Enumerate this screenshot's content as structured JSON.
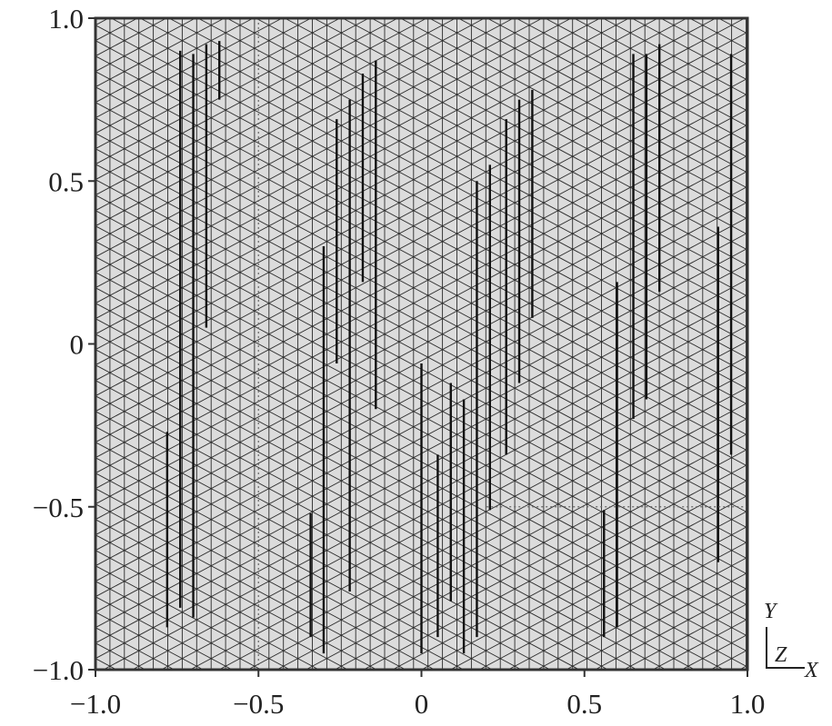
{
  "chart_data": {
    "type": "mesh",
    "xlim": [
      -1.0,
      1.0
    ],
    "ylim": [
      -1.0,
      1.0
    ],
    "x_ticks": [
      "−1.0",
      "−0.5",
      "0",
      "0.5",
      "1.0"
    ],
    "x_tick_values": [
      -1.0,
      -0.5,
      0,
      0.5,
      1.0
    ],
    "y_ticks": [
      "1.0",
      "0.5",
      "0",
      "−0.5",
      "−1.0"
    ],
    "y_tick_values": [
      1.0,
      0.5,
      0,
      -0.5,
      -1.0
    ],
    "grid": false,
    "mesh": "triangular",
    "fill_color": "#dcdcdc",
    "edge_color": "#222222",
    "dark_segments": [
      {
        "x": -0.78,
        "y": [
          -0.27,
          -0.87
        ]
      },
      {
        "x": -0.74,
        "y": [
          0.9,
          -0.81
        ]
      },
      {
        "x": -0.7,
        "y": [
          0.89,
          -0.84
        ]
      },
      {
        "x": -0.66,
        "y": [
          0.92,
          0.05
        ]
      },
      {
        "x": -0.62,
        "y": [
          0.93,
          0.75
        ]
      },
      {
        "x": -0.34,
        "y": [
          -0.52,
          -0.9
        ]
      },
      {
        "x": -0.3,
        "y": [
          0.3,
          -0.95
        ]
      },
      {
        "x": -0.26,
        "y": [
          0.69,
          -0.06
        ]
      },
      {
        "x": -0.22,
        "y": [
          0.75,
          -0.76
        ]
      },
      {
        "x": -0.18,
        "y": [
          0.83,
          0.19
        ]
      },
      {
        "x": -0.14,
        "y": [
          0.87,
          -0.2
        ]
      },
      {
        "x": 0.0,
        "y": [
          -0.06,
          -0.95
        ]
      },
      {
        "x": 0.05,
        "y": [
          -0.34,
          -0.9
        ]
      },
      {
        "x": 0.09,
        "y": [
          -0.12,
          -0.79
        ]
      },
      {
        "x": 0.13,
        "y": [
          -0.17,
          -0.95
        ]
      },
      {
        "x": 0.17,
        "y": [
          0.5,
          -0.9
        ]
      },
      {
        "x": 0.21,
        "y": [
          0.55,
          -0.51
        ]
      },
      {
        "x": 0.26,
        "y": [
          0.69,
          -0.34
        ]
      },
      {
        "x": 0.3,
        "y": [
          0.75,
          -0.12
        ]
      },
      {
        "x": 0.34,
        "y": [
          0.78,
          0.08
        ]
      },
      {
        "x": 0.56,
        "y": [
          -0.51,
          -0.9
        ]
      },
      {
        "x": 0.6,
        "y": [
          0.19,
          -0.87
        ]
      },
      {
        "x": 0.65,
        "y": [
          0.89,
          -0.23
        ]
      },
      {
        "x": 0.69,
        "y": [
          0.89,
          -0.17
        ]
      },
      {
        "x": 0.73,
        "y": [
          0.92,
          0.16
        ]
      },
      {
        "x": 0.91,
        "y": [
          0.36,
          -0.67
        ]
      },
      {
        "x": 0.95,
        "y": [
          0.89,
          -0.34
        ]
      }
    ],
    "dotted_lines": [
      {
        "x": [
          -0.5,
          -0.5
        ],
        "y": [
          1.0,
          -1.0
        ]
      },
      {
        "x": [
          0.2,
          1.0
        ],
        "y": [
          -0.5,
          -0.5
        ]
      }
    ],
    "axis_triad": {
      "y_label": "Y",
      "z_label": "Z",
      "x_label": "X"
    }
  }
}
